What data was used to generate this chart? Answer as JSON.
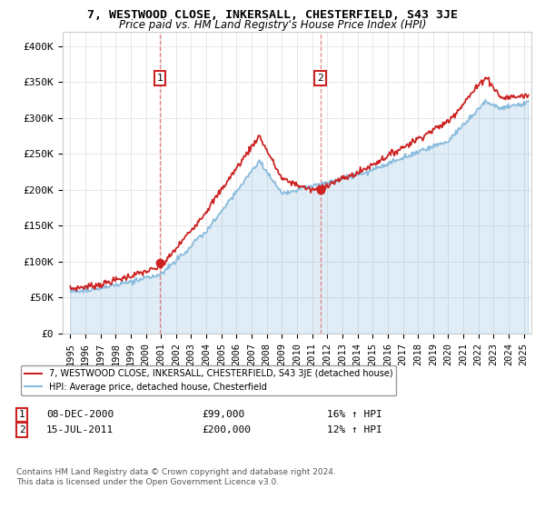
{
  "title_line1": "7, WESTWOOD CLOSE, INKERSALL, CHESTERFIELD, S43 3JE",
  "title_line2": "Price paid vs. HM Land Registry's House Price Index (HPI)",
  "ylabel_ticks": [
    "£0",
    "£50K",
    "£100K",
    "£150K",
    "£200K",
    "£250K",
    "£300K",
    "£350K",
    "£400K"
  ],
  "ylabel_values": [
    0,
    50000,
    100000,
    150000,
    200000,
    250000,
    300000,
    350000,
    400000
  ],
  "ylim": [
    0,
    420000
  ],
  "xlim_start": 1994.5,
  "xlim_end": 2025.5,
  "hpi_color": "#88bbdd",
  "price_color": "#cc2222",
  "sale1_x": 2000.92,
  "sale1_y": 99000,
  "sale2_x": 2011.54,
  "sale2_y": 200000,
  "sale1_date": "08-DEC-2000",
  "sale1_price": "£99,000",
  "sale1_hpi_pct": "16% ↑ HPI",
  "sale2_date": "15-JUL-2011",
  "sale2_price": "£200,000",
  "sale2_hpi_pct": "12% ↑ HPI",
  "legend_label_price": "7, WESTWOOD CLOSE, INKERSALL, CHESTERFIELD, S43 3JE (detached house)",
  "legend_label_hpi": "HPI: Average price, detached house, Chesterfield",
  "footnote": "Contains HM Land Registry data © Crown copyright and database right 2024.\nThis data is licensed under the Open Government Licence v3.0.",
  "background_color": "#ffffff",
  "grid_color": "#dddddd",
  "vline_color": "#dd6666"
}
